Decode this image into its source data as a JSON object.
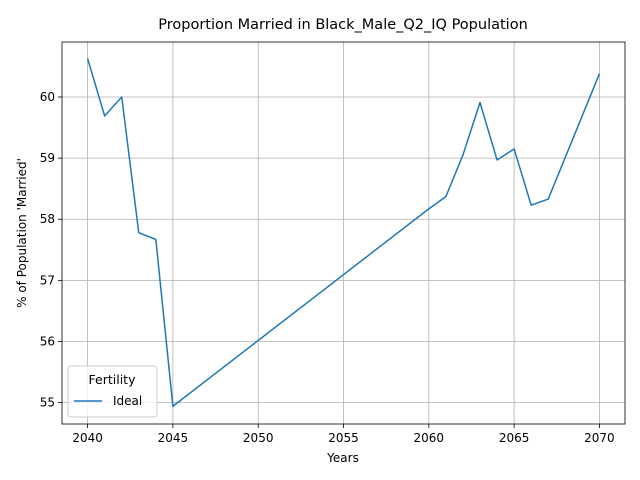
{
  "chart_data": {
    "type": "line",
    "title": "Proportion Married in Black_Male_Q2_IQ Population",
    "xlabel": "Years",
    "ylabel": "% of Population 'Married'",
    "xlim": [
      2038.5,
      2071.5
    ],
    "ylim": [
      54.65,
      60.9
    ],
    "xticks": [
      2040,
      2045,
      2050,
      2055,
      2060,
      2065,
      2070
    ],
    "yticks": [
      55,
      56,
      57,
      58,
      59,
      60
    ],
    "grid": true,
    "legend": {
      "title": "Fertility",
      "placement": "lower-left"
    },
    "series": [
      {
        "name": "Ideal",
        "color": "#1f77b4",
        "x": [
          2040,
          2041,
          2042,
          2043,
          2044,
          2045,
          2060,
          2061,
          2062,
          2063,
          2064,
          2065,
          2066,
          2067,
          2070
        ],
        "y": [
          60.63,
          59.69,
          60.0,
          57.78,
          57.67,
          54.94,
          58.17,
          58.37,
          59.05,
          59.91,
          58.97,
          59.15,
          58.23,
          58.33,
          60.38
        ]
      }
    ]
  }
}
